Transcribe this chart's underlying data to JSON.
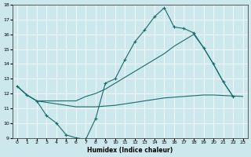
{
  "xlabel": "Humidex (Indice chaleur)",
  "bg_color": "#cce8ec",
  "line_color": "#1a6b6b",
  "grid_color": "#ffffff",
  "xlim": [
    -0.5,
    23.5
  ],
  "ylim": [
    9,
    18
  ],
  "xticks": [
    0,
    1,
    2,
    3,
    4,
    5,
    6,
    7,
    8,
    9,
    10,
    11,
    12,
    13,
    14,
    15,
    16,
    17,
    18,
    19,
    20,
    21,
    22,
    23
  ],
  "yticks": [
    9,
    10,
    11,
    12,
    13,
    14,
    15,
    16,
    17,
    18
  ],
  "line1_x": [
    0,
    1,
    2,
    3,
    4,
    5,
    6,
    7,
    8,
    9,
    10,
    11,
    12,
    13,
    14,
    15,
    16,
    17,
    18,
    19,
    20,
    21,
    22
  ],
  "line1_y": [
    12.5,
    11.9,
    11.5,
    10.5,
    10.0,
    9.2,
    9.0,
    8.9,
    10.3,
    12.7,
    13.0,
    14.3,
    15.5,
    16.3,
    17.2,
    17.8,
    16.5,
    16.4,
    16.1,
    15.1,
    14.0,
    12.8,
    11.8
  ],
  "line2_x": [
    0,
    1,
    2,
    3,
    4,
    5,
    6,
    7,
    8,
    9,
    10,
    11,
    12,
    13,
    14,
    15,
    16,
    17,
    18,
    19,
    20,
    21,
    22,
    23
  ],
  "line2_y": [
    12.5,
    11.9,
    11.5,
    11.5,
    11.5,
    11.5,
    11.5,
    11.8,
    12.0,
    12.3,
    12.7,
    13.1,
    13.5,
    13.9,
    14.3,
    14.7,
    15.2,
    15.6,
    16.0,
    15.1,
    14.0,
    12.8,
    11.8,
    null
  ],
  "line3_x": [
    0,
    1,
    2,
    3,
    4,
    5,
    6,
    7,
    8,
    9,
    10,
    11,
    12,
    13,
    14,
    15,
    16,
    17,
    18,
    19,
    20,
    21,
    22,
    23
  ],
  "line3_y": [
    12.5,
    11.9,
    11.5,
    11.4,
    11.3,
    11.2,
    11.1,
    11.1,
    11.1,
    11.15,
    11.2,
    11.3,
    11.4,
    11.5,
    11.6,
    11.7,
    11.75,
    11.8,
    11.85,
    11.9,
    11.9,
    null,
    null,
    11.8
  ]
}
